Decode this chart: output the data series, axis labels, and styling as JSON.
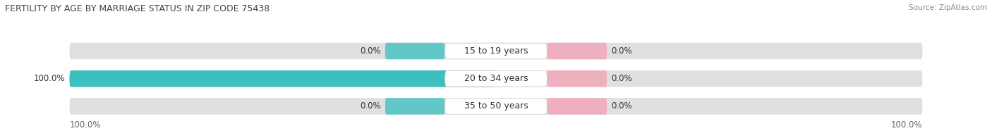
{
  "title": "FERTILITY BY AGE BY MARRIAGE STATUS IN ZIP CODE 75438",
  "source": "Source: ZipAtlas.com",
  "categories": [
    "15 to 19 years",
    "20 to 34 years",
    "35 to 50 years"
  ],
  "married_values": [
    0.0,
    100.0,
    0.0
  ],
  "unmarried_values": [
    0.0,
    0.0,
    0.0
  ],
  "married_color": "#3bbfbf",
  "unmarried_color": "#f4a0b4",
  "bar_bg_color": "#e0e0e0",
  "label_bg_color": "#ffffff",
  "bar_label_married_left": [
    "0.0%",
    "100.0%",
    "0.0%"
  ],
  "bar_label_unmarried_right": [
    "0.0%",
    "0.0%",
    "0.0%"
  ],
  "x_left_label": "100.0%",
  "x_right_label": "100.0%",
  "fig_bg_color": "#ffffff",
  "title_fontsize": 9,
  "source_fontsize": 7.5,
  "label_fontsize": 8.5,
  "cat_fontsize": 9
}
